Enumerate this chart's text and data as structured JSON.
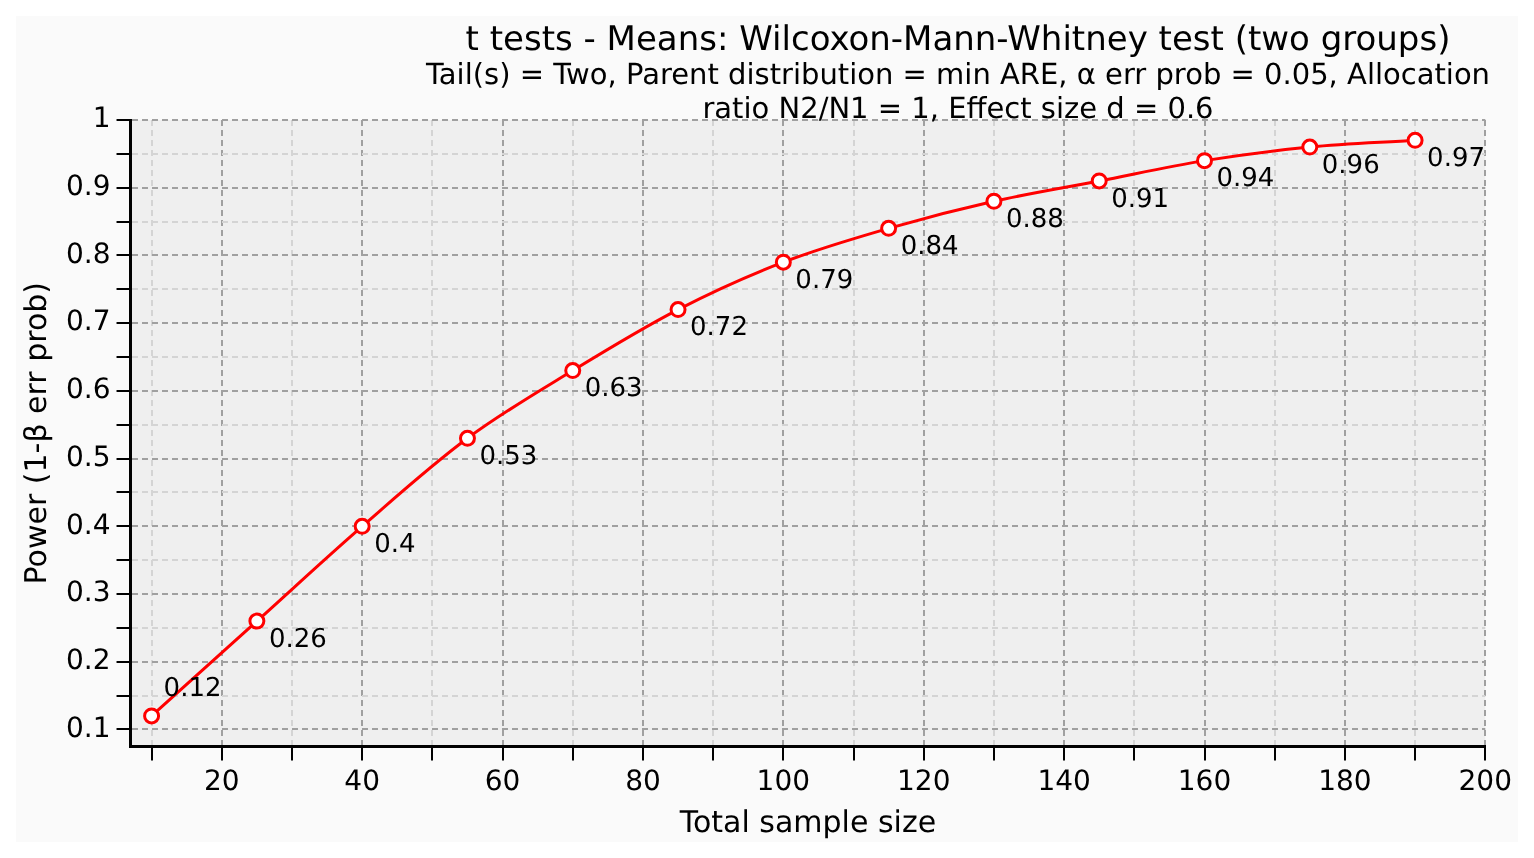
{
  "chart_data": {
    "type": "line",
    "title": "t tests - Means: Wilcoxon-Mann-Whitney test (two groups)",
    "subtitle": "Tail(s) = Two, Parent distribution = min ARE, α err prob = 0.05, Allocation ratio N2/N1 = 1, Effect size d = 0.6",
    "xlabel": "Total sample size",
    "ylabel": "Power (1-β err prob)",
    "x": [
      10,
      25,
      40,
      55,
      70,
      85,
      100,
      115,
      130,
      145,
      160,
      175,
      190
    ],
    "series": [
      {
        "color": "#ff0000",
        "values": [
          0.12,
          0.26,
          0.4,
          0.53,
          0.63,
          0.72,
          0.79,
          0.84,
          0.88,
          0.91,
          0.94,
          0.96,
          0.97
        ]
      }
    ],
    "xlim": [
      7,
      200
    ],
    "xticks": [
      {
        "value": 10,
        "label": null
      },
      20,
      {
        "value": 30,
        "label": null
      },
      40,
      {
        "value": 50,
        "label": null
      },
      60,
      {
        "value": 70,
        "label": null
      },
      80,
      {
        "value": 90,
        "label": null
      },
      100,
      {
        "value": 110,
        "label": null
      },
      120,
      {
        "value": 130,
        "label": null
      },
      140,
      {
        "value": 150,
        "label": null
      },
      160,
      {
        "value": 170,
        "label": null
      },
      180,
      {
        "value": 190,
        "label": null
      },
      200
    ],
    "ylim": [
      0.075,
      1
    ],
    "yticks": [
      0.1,
      {
        "value": 0.15,
        "label": null
      },
      0.2,
      {
        "value": 0.25,
        "label": null
      },
      0.3,
      {
        "value": 0.35,
        "label": null
      },
      0.4,
      {
        "value": 0.45,
        "label": null
      },
      0.5,
      {
        "value": 0.55,
        "label": null
      },
      0.6,
      {
        "value": 0.65,
        "label": null
      },
      0.7,
      {
        "value": 0.75,
        "label": null
      },
      0.8,
      {
        "value": 0.85,
        "label": null
      },
      0.9,
      {
        "value": 0.95,
        "label": null
      },
      1
    ],
    "grid": true,
    "marker": "circle",
    "line_style": "solid",
    "data_labels": true
  }
}
